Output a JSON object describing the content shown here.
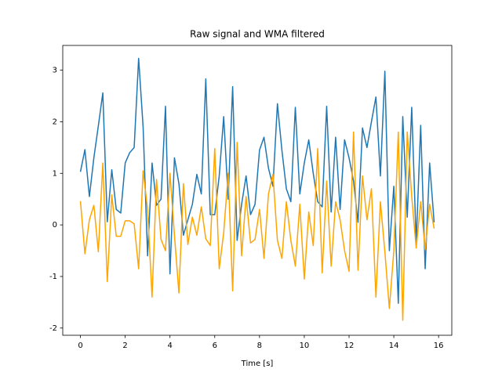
{
  "chart_data": {
    "type": "line",
    "title": "Raw signal and WMA filtered",
    "x_label": "Time [s]",
    "x": [
      0,
      0.2,
      0.4,
      0.6,
      0.8,
      1,
      1.2,
      1.4,
      1.6,
      1.8,
      2,
      2.2,
      2.4,
      2.6,
      2.8,
      3,
      3.2,
      3.4,
      3.6,
      3.8,
      4,
      4.2,
      4.4,
      4.6,
      4.8,
      5,
      5.2,
      5.4,
      5.6,
      5.8,
      6,
      6.2,
      6.4,
      6.6,
      6.8,
      7,
      7.2,
      7.4,
      7.6,
      7.8,
      8,
      8.2,
      8.4,
      8.6,
      8.8,
      9,
      9.2,
      9.4,
      9.6,
      9.8,
      10,
      10.2,
      10.4,
      10.6,
      10.8,
      11,
      11.2,
      11.4,
      11.6,
      11.8,
      12,
      12.2,
      12.4,
      12.6,
      12.8,
      13,
      13.2,
      13.4,
      13.6,
      13.8,
      14,
      14.2,
      14.4,
      14.6,
      14.8,
      15,
      15.2,
      15.4,
      15.6,
      15.8
    ],
    "series": [
      {
        "color": "#1f77b4",
        "values": [
          1.03,
          1.46,
          0.55,
          1.3,
          1.92,
          2.56,
          0.06,
          1.07,
          0.3,
          0.23,
          1.2,
          1.4,
          1.5,
          3.23,
          1.9,
          -0.6,
          1.2,
          0.38,
          0.5,
          2.3,
          -0.95,
          1.3,
          0.8,
          -0.2,
          0.1,
          0.4,
          0.98,
          0.6,
          2.83,
          0.2,
          0.2,
          0.95,
          2.1,
          0.5,
          2.68,
          -0.3,
          0.4,
          0.95,
          0.2,
          0.4,
          1.45,
          1.7,
          1.1,
          0.75,
          2.35,
          1.45,
          0.7,
          0.45,
          2.28,
          0.6,
          1.2,
          1.65,
          1.0,
          0.45,
          0.35,
          2.3,
          0.25,
          1.7,
          0.3,
          1.65,
          1.3,
          0.85,
          0.05,
          1.88,
          1.5,
          2.0,
          2.48,
          0.95,
          2.98,
          -0.5,
          0.75,
          -1.52,
          2.1,
          0.15,
          2.28,
          -0.35,
          1.93,
          -0.85,
          1.2,
          0.05
        ]
      },
      {
        "color": "#ffa500",
        "values": [
          0.46,
          -0.56,
          0.1,
          0.38,
          -0.52,
          1.2,
          -1.1,
          0.58,
          -0.22,
          -0.22,
          0.08,
          0.08,
          0.02,
          -0.85,
          1.05,
          0.3,
          -1.4,
          0.88,
          -0.28,
          -0.5,
          1.0,
          -0.2,
          -1.32,
          0.8,
          -0.38,
          0.15,
          -0.2,
          0.35,
          -0.27,
          -0.4,
          1.48,
          -0.85,
          -0.15,
          1.0,
          -1.28,
          1.6,
          -0.6,
          0.55,
          -0.35,
          -0.28,
          0.3,
          -0.65,
          0.6,
          0.98,
          -0.3,
          -0.65,
          0.45,
          -0.3,
          -0.8,
          0.4,
          -1.05,
          0.25,
          -0.4,
          1.48,
          -0.93,
          0.85,
          -0.8,
          0.45,
          0.1,
          -0.5,
          -0.9,
          1.8,
          -0.88,
          0.95,
          0.1,
          0.7,
          -1.4,
          0.45,
          -0.52,
          -1.62,
          -0.5,
          1.8,
          -1.85,
          1.8,
          0.55,
          -0.45,
          0.45,
          -0.48,
          0.4,
          -0.07
        ]
      }
    ],
    "xlim": [
      -0.79,
      16.59
    ],
    "xticks": [
      0,
      2,
      4,
      6,
      8,
      10,
      12,
      14,
      16
    ],
    "ylim": [
      -2.14,
      3.48
    ],
    "yticks": [
      -2,
      -1,
      0,
      1,
      2,
      3
    ]
  }
}
